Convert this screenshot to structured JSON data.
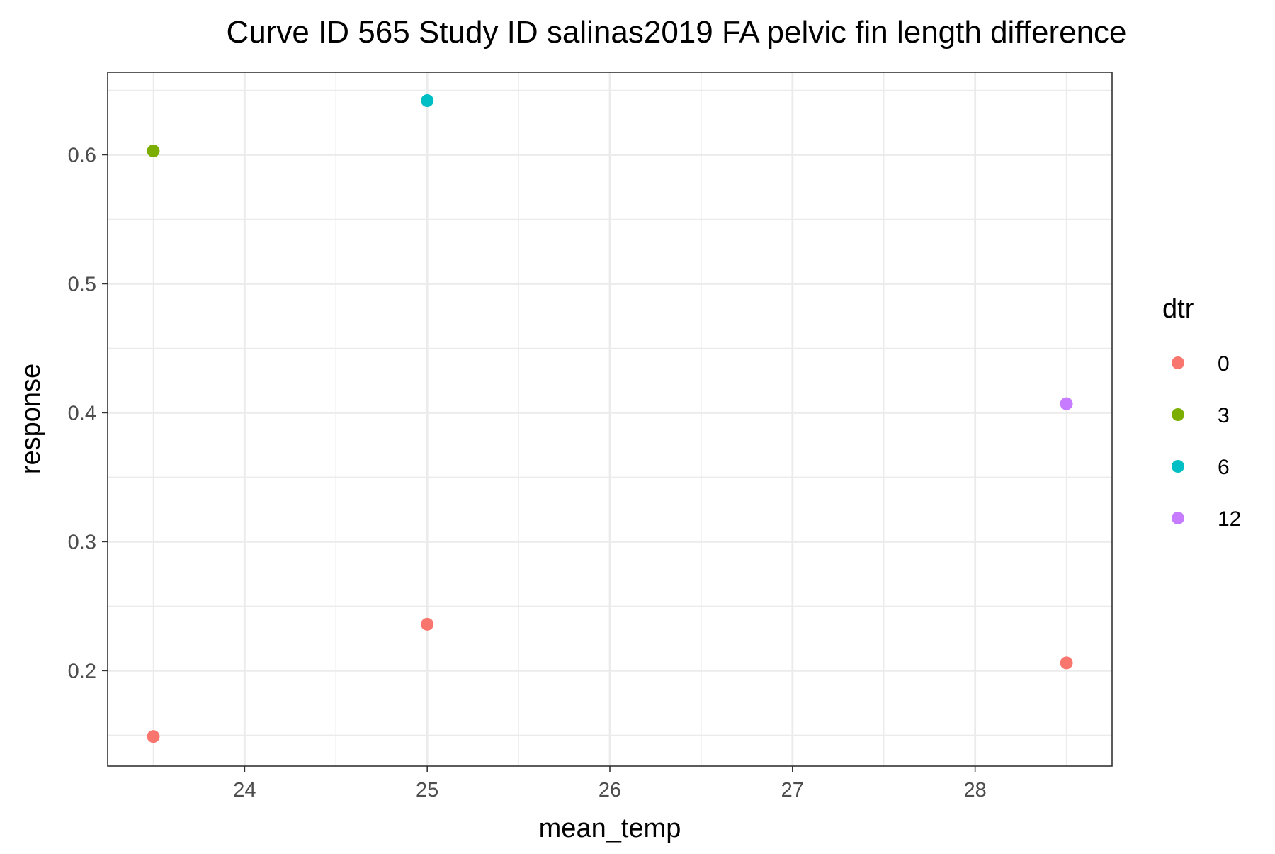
{
  "chart_data": {
    "type": "scatter",
    "title": "Curve ID 565 Study ID salinas2019 FA pelvic fin length difference",
    "xlabel": "mean_temp",
    "ylabel": "response",
    "xlim": [
      23.25,
      28.75
    ],
    "ylim": [
      0.126,
      0.664
    ],
    "x_ticks": [
      24,
      25,
      26,
      27,
      28
    ],
    "y_ticks": [
      0.2,
      0.3,
      0.4,
      0.5,
      0.6
    ],
    "x_tick_labels": [
      "24",
      "25",
      "26",
      "27",
      "28"
    ],
    "y_tick_labels": [
      "0.2",
      "0.3",
      "0.4",
      "0.5",
      "0.6"
    ],
    "grid": true,
    "legend": {
      "title": "dtr",
      "position": "right",
      "entries": [
        {
          "label": "0",
          "color": "#F8766D"
        },
        {
          "label": "3",
          "color": "#7CAE00"
        },
        {
          "label": "6",
          "color": "#00BFC4"
        },
        {
          "label": "12",
          "color": "#C77CFF"
        }
      ]
    },
    "series": [
      {
        "name": "0",
        "color": "#F8766D",
        "points": [
          [
            23.5,
            0.149
          ],
          [
            25.0,
            0.236
          ],
          [
            28.5,
            0.206
          ]
        ]
      },
      {
        "name": "3",
        "color": "#7CAE00",
        "points": [
          [
            23.5,
            0.603
          ]
        ]
      },
      {
        "name": "6",
        "color": "#00BFC4",
        "points": [
          [
            25.0,
            0.642
          ]
        ]
      },
      {
        "name": "12",
        "color": "#C77CFF",
        "points": [
          [
            28.5,
            0.407
          ]
        ]
      }
    ]
  }
}
